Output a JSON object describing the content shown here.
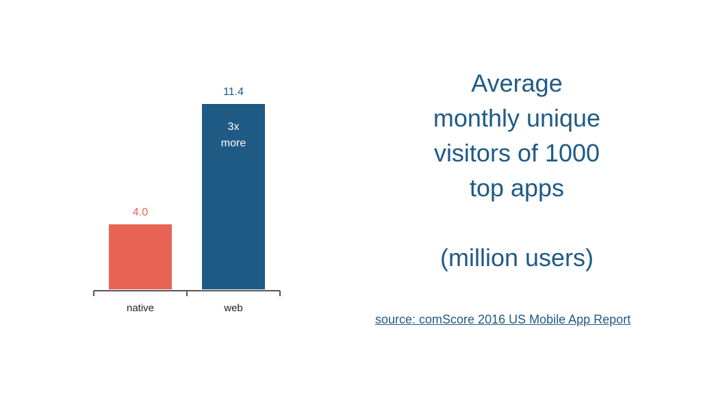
{
  "slide": {
    "title_lines": [
      "Average",
      "monthly unique",
      "visitors of 1000",
      "top apps"
    ],
    "units": "(million users)",
    "source": "source: comScore 2016 US Mobile App Report"
  },
  "chart_data": {
    "type": "bar",
    "categories": [
      "native",
      "web"
    ],
    "values": [
      4.0,
      11.4
    ],
    "value_labels": [
      "4.0",
      "11.4"
    ],
    "bar_colors": [
      "#e76354",
      "#1f5a85"
    ],
    "label_colors": [
      "#e76354",
      "#1f5a85"
    ],
    "annotation": {
      "category": "web",
      "lines": [
        "3x",
        "more"
      ],
      "color": "#ffffff"
    },
    "ylim": [
      0,
      11.4
    ],
    "grid": false,
    "legend": "none"
  },
  "colors": {
    "accent": "#1f5a85",
    "native": "#e76354",
    "axis": "#555555"
  }
}
